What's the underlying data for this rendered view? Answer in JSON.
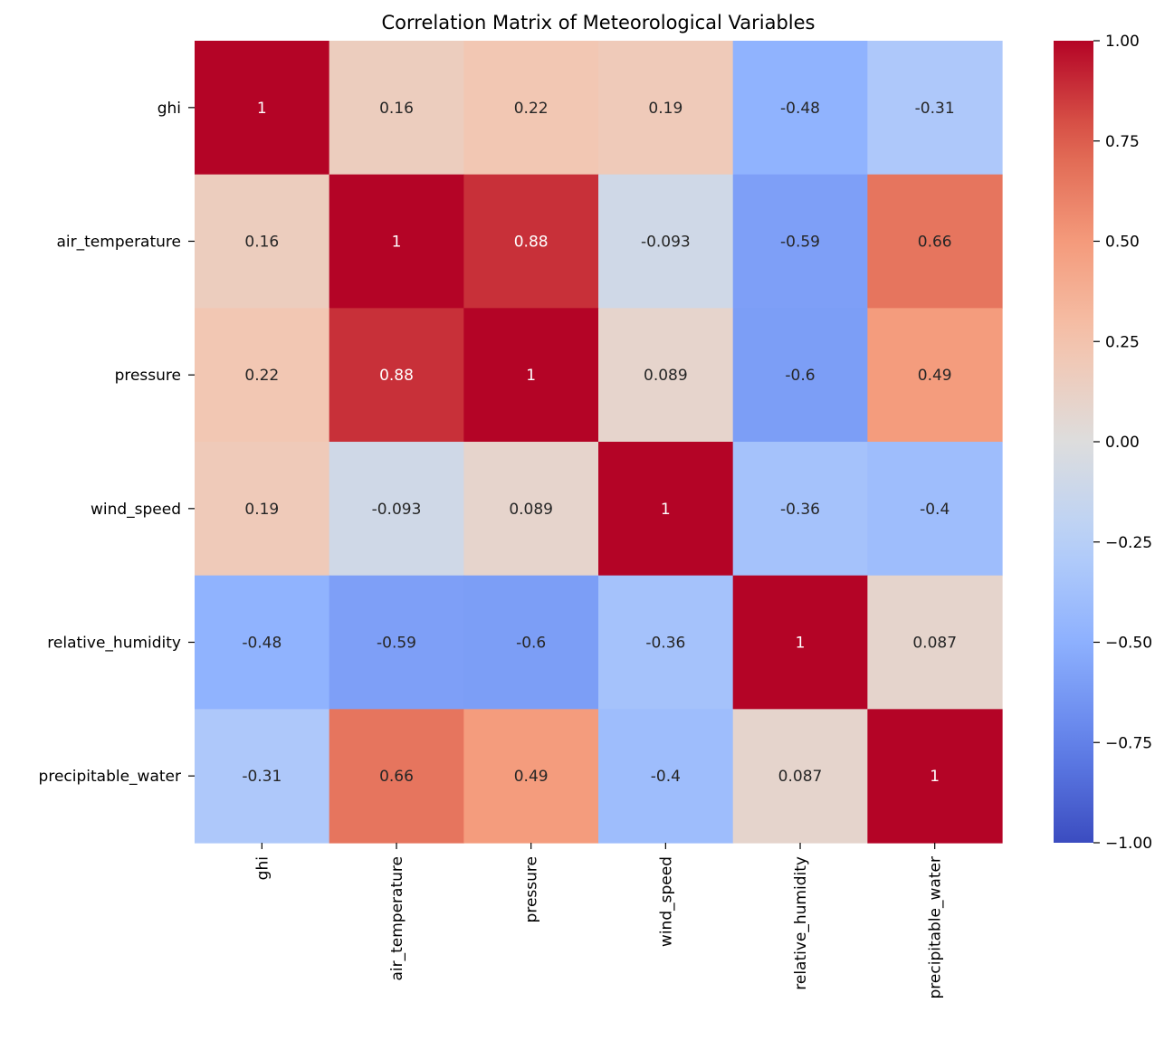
{
  "chart_data": {
    "type": "heatmap",
    "title": "Correlation Matrix of Meteorological Variables",
    "rows": [
      "ghi",
      "air_temperature",
      "pressure",
      "wind_speed",
      "relative_humidity",
      "precipitable_water"
    ],
    "columns": [
      "ghi",
      "air_temperature",
      "pressure",
      "wind_speed",
      "relative_humidity",
      "precipitable_water"
    ],
    "values": [
      [
        1,
        0.16,
        0.22,
        0.19,
        -0.48,
        -0.31
      ],
      [
        0.16,
        1,
        0.88,
        -0.093,
        -0.59,
        0.66
      ],
      [
        0.22,
        0.88,
        1,
        0.089,
        -0.6,
        0.49
      ],
      [
        0.19,
        -0.093,
        0.089,
        1,
        -0.36,
        -0.4
      ],
      [
        -0.48,
        -0.59,
        -0.6,
        -0.36,
        1,
        0.087
      ],
      [
        -0.31,
        0.66,
        0.49,
        -0.4,
        0.087,
        1
      ]
    ],
    "annotations": [
      [
        "1",
        "0.16",
        "0.22",
        "0.19",
        "-0.48",
        "-0.31"
      ],
      [
        "0.16",
        "1",
        "0.88",
        "-0.093",
        "-0.59",
        "0.66"
      ],
      [
        "0.22",
        "0.88",
        "1",
        "0.089",
        "-0.6",
        "0.49"
      ],
      [
        "0.19",
        "-0.093",
        "0.089",
        "1",
        "-0.36",
        "-0.4"
      ],
      [
        "-0.48",
        "-0.59",
        "-0.6",
        "-0.36",
        "1",
        "0.087"
      ],
      [
        "-0.31",
        "0.66",
        "0.49",
        "-0.4",
        "0.087",
        "1"
      ]
    ],
    "colormap": "coolwarm",
    "vmin": -1,
    "vmax": 1,
    "colorbar_ticks": [
      1.0,
      0.75,
      0.5,
      0.25,
      0.0,
      -0.25,
      -0.5,
      -0.75,
      -1.0
    ],
    "colorbar_tick_labels": [
      "1.00",
      "0.75",
      "0.50",
      "0.25",
      "0.00",
      "−0.25",
      "−0.50",
      "−0.75",
      "−1.00"
    ],
    "colorbar_position": "right",
    "grid": false,
    "colors": {
      "low": "#3b4cc0",
      "mid": "#dddddd",
      "high": "#b40426",
      "text_dark": "#262626",
      "text_light": "#ffffff"
    }
  }
}
